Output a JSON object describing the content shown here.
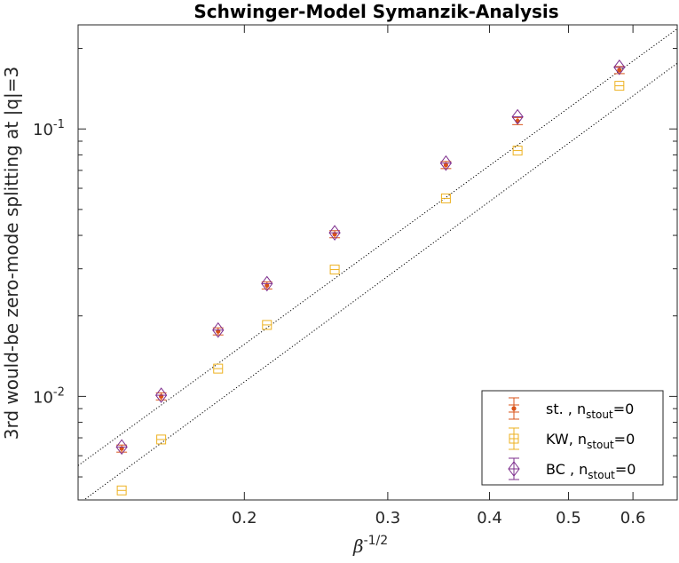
{
  "chart_data": {
    "type": "scatter",
    "title": "Schwinger-Model Symanzik-Analysis",
    "xlabel": {
      "base": "β",
      "sup": "-1/2"
    },
    "ylabel": "3rd would-be zero-mode splitting at |q|=3",
    "xscale": "log",
    "yscale": "log",
    "xlim": [
      0.125,
      0.68
    ],
    "ylim": [
      0.0041,
      0.245
    ],
    "xticks": [
      {
        "value": 0.2,
        "label": "0.2"
      },
      {
        "value": 0.3,
        "label": "0.3"
      },
      {
        "value": 0.4,
        "label": "0.4"
      },
      {
        "value": 0.5,
        "label": "0.5"
      },
      {
        "value": 0.6,
        "label": "0.6"
      }
    ],
    "yticks": [
      {
        "value": 0.01,
        "base": "10",
        "exp": "-2"
      },
      {
        "value": 0.1,
        "base": "10",
        "exp": "-1"
      }
    ],
    "grid": false,
    "legend_position": "bottom-right",
    "series": [
      {
        "name": "st. , n",
        "name_sub": "stout",
        "name_tail": "=0",
        "marker": "dot",
        "color": "#d95319",
        "x": [
          0.1414,
          0.1581,
          0.1857,
          0.2132,
          0.2582,
          0.3536,
          0.433,
          0.5774
        ],
        "y": [
          0.00638,
          0.01,
          0.0175,
          0.026,
          0.0404,
          0.0733,
          0.107,
          0.166
        ]
      },
      {
        "name": "KW, n",
        "name_sub": "stout",
        "name_tail": "=0",
        "marker": "square",
        "color": "#edb120",
        "x": [
          0.1414,
          0.1581,
          0.1857,
          0.2132,
          0.2582,
          0.3536,
          0.433,
          0.5774
        ],
        "y": [
          0.00445,
          0.0069,
          0.0127,
          0.0185,
          0.0298,
          0.055,
          0.083,
          0.145
        ]
      },
      {
        "name": "BC , n",
        "name_sub": "stout",
        "name_tail": "=0",
        "marker": "diamond",
        "color": "#7e2f8e",
        "x": [
          0.1414,
          0.1581,
          0.1857,
          0.2132,
          0.2582,
          0.3536,
          0.433,
          0.5774
        ],
        "y": [
          0.00647,
          0.0101,
          0.0177,
          0.0264,
          0.0409,
          0.0745,
          0.111,
          0.17
        ]
      }
    ],
    "fit_lines": [
      {
        "style": "dotted",
        "color": "#000000",
        "x": [
          0.125,
          0.68
        ],
        "y": [
          0.00551,
          0.237
        ]
      },
      {
        "style": "dotted",
        "color": "#000000",
        "x": [
          0.125,
          0.68
        ],
        "y": [
          0.00395,
          0.176
        ]
      }
    ]
  }
}
